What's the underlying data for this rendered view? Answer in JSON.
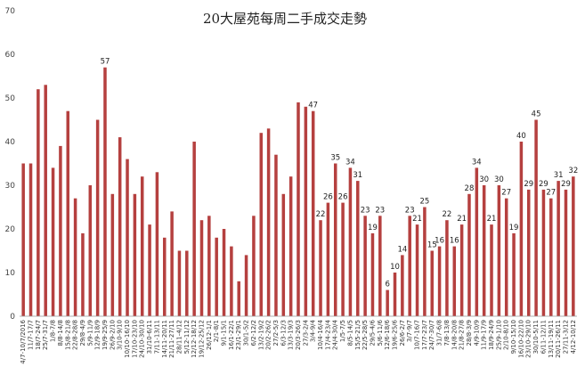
{
  "chart_data": {
    "type": "bar",
    "title": "20大屋苑每周二手成交走勢",
    "ylim": [
      0,
      70
    ],
    "yticks": [
      0,
      10,
      20,
      30,
      40,
      50,
      60,
      70
    ],
    "grid": false,
    "legend": "none",
    "bar_color": "#b5403f",
    "categories": [
      "4/7-10/7/2016",
      "11/7-17/7",
      "18/7-24/7",
      "25/7-31/7",
      "1/8-7/8",
      "8/8-14/8",
      "15/8-21/8",
      "22/8-28/8",
      "29/8-4/9",
      "5/9-11/9",
      "12/9-18/9",
      "19/9-25/9",
      "26/9-2/10",
      "3/10-9/10",
      "10/10-16/10",
      "17/10-23/10",
      "24/10-30/10",
      "31/10-6/11",
      "7/11-13/11",
      "14/11-20/11",
      "21/11-27/11",
      "28/11-4/12",
      "5/12-11/12",
      "12/12-18/12",
      "19/12-25/12",
      "26/12-1/1",
      "2/1-8/1",
      "9/1-15/1",
      "16/1-22/1",
      "23/1-29/1",
      "30/1-5/2",
      "6/2-12/2",
      "13/2-19/2",
      "20/2-26/2",
      "27/2-5/3",
      "6/3-12/3",
      "13/3-19/3",
      "20/3-26/3",
      "27/3-2/4",
      "3/4-9/4",
      "10/4-16/4",
      "17/4-23/4",
      "24/4-30/4",
      "1/5-7/5",
      "8/5-14/5",
      "15/5-21/5",
      "22/5-28/5",
      "29/5-4/6",
      "5/6-11/6",
      "12/6-18/6",
      "19/6-25/6",
      "26/6-2/7",
      "3/7-9/7",
      "10/7-16/7",
      "17/7-23/7",
      "24/7-30/7",
      "31/7-6/8",
      "7/8-13/8",
      "14/8-20/8",
      "21/8-27/8",
      "28/8-3/9",
      "4/9-10/9",
      "11/9-17/9",
      "18/9-24/9",
      "25/9-1/10",
      "2/10-8/10",
      "9/10-15/10",
      "16/10-22/10",
      "23/10-29/10",
      "30/10-5/11",
      "6/11-12/11",
      "13/11-19/11",
      "20/11-26/11",
      "27/11-3/12",
      "4/12-10/12"
    ],
    "values": [
      35,
      35,
      52,
      53,
      34,
      39,
      47,
      27,
      19,
      30,
      45,
      57,
      28,
      41,
      36,
      28,
      32,
      21,
      33,
      18,
      24,
      15,
      15,
      40,
      22,
      23,
      18,
      20,
      16,
      8,
      14,
      23,
      42,
      43,
      37,
      28,
      32,
      49,
      48,
      47,
      22,
      26,
      35,
      26,
      34,
      31,
      23,
      19,
      23,
      6,
      10,
      14,
      23,
      21,
      25,
      15,
      16,
      22,
      16,
      21,
      28,
      34,
      30,
      21,
      30,
      27,
      19,
      40,
      29,
      45,
      29,
      27,
      31,
      29,
      32
    ],
    "labeled_values": [
      null,
      null,
      null,
      null,
      null,
      null,
      null,
      null,
      null,
      null,
      null,
      57,
      null,
      null,
      null,
      null,
      null,
      null,
      null,
      null,
      null,
      null,
      null,
      null,
      null,
      null,
      null,
      null,
      null,
      null,
      null,
      null,
      null,
      null,
      null,
      null,
      null,
      null,
      null,
      47,
      22,
      26,
      35,
      26,
      34,
      31,
      23,
      19,
      23,
      6,
      10,
      14,
      23,
      21,
      25,
      15,
      16,
      22,
      16,
      21,
      28,
      34,
      30,
      21,
      30,
      27,
      19,
      40,
      29,
      45,
      29,
      27,
      31,
      29,
      32
    ]
  }
}
